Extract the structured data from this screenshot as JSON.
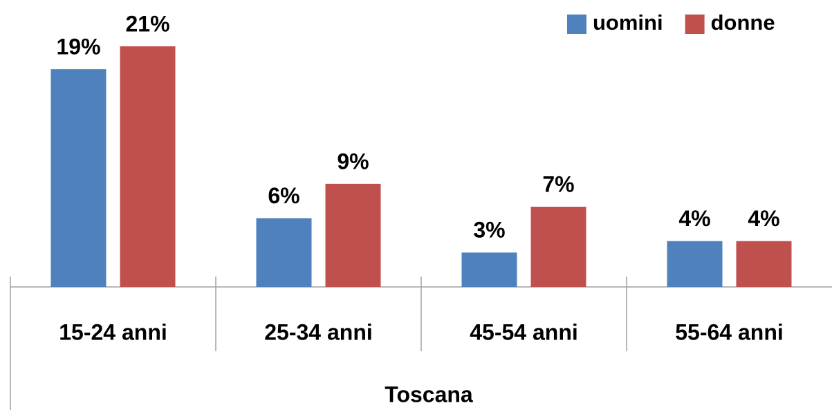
{
  "chart_data": {
    "type": "bar",
    "categories": [
      "15-24 anni",
      "25-34 anni",
      "45-54 anni",
      "55-64 anni"
    ],
    "group_label": "Toscana",
    "series": [
      {
        "name": "uomini",
        "color": "#4f81bd",
        "values": [
          19,
          6,
          3,
          4
        ],
        "value_labels": [
          "19%",
          "6%",
          "3%",
          "4%"
        ]
      },
      {
        "name": "donne",
        "color": "#c0504d",
        "values": [
          21,
          9,
          7,
          4
        ],
        "value_labels": [
          "21%",
          "9%",
          "7%",
          "4%"
        ]
      }
    ],
    "legend": "top-right",
    "grid": false
  }
}
